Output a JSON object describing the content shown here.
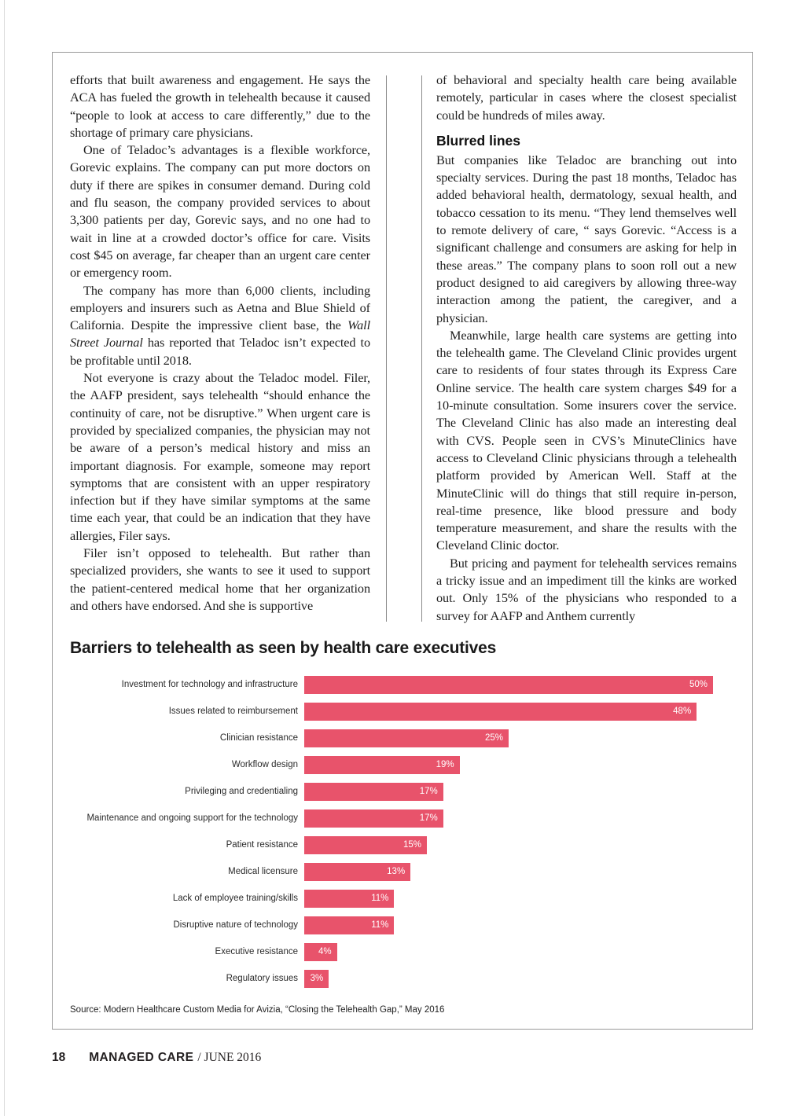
{
  "article": {
    "left_column": {
      "para1": "efforts that built awareness and engagement. He says the ACA has fueled the growth in telehealth because it caused “people to look at access to care differently,” due to the shortage of primary care physicians.",
      "para2": "One of Teladoc’s advantages is a flexible workforce, Gorevic explains. The company can put more doctors on duty if there are spikes in consumer demand. During cold and flu season, the company provided services to about 3,300 patients per day, Gorevic says, and no one had to wait in line at a crowded doctor’s office for care. Visits cost $45 on average, far cheaper than an urgent care center or emergency room.",
      "para3a": "The company has more than 6,000 clients, including employers and insurers such as Aetna and Blue Shield of California. Despite the impressive client base, the ",
      "para3_italic": "Wall Street Journal",
      "para3b": " has reported that Teladoc isn’t expected to be profitable until 2018.",
      "para4": "Not everyone is crazy about the Teladoc model. Filer, the AAFP president, says telehealth “should enhance the continuity of care, not be disruptive.” When urgent care is provided by specialized companies, the physician may not be aware of a person’s medical history and miss an important diagnosis. For example, someone may report symptoms that are consistent with an upper respiratory infection but if they have similar symptoms at the same time each year, that could be an indication that they have allergies, Filer says.",
      "para5": "Filer isn’t opposed to telehealth. But rather than specialized providers, she wants to see it used to support the patient-centered medical home that her organization and others have endorsed. And she is supportive"
    },
    "right_column": {
      "intro": "of behavioral and specialty health care being available remotely, particular in cases where the closest specialist could be hundreds of miles away.",
      "heading": "Blurred lines",
      "para1": "But companies like Teladoc are branching out into specialty services. During the past 18 months, Teladoc has added behavioral health, dermatology, sexual health, and tobacco cessation to its menu. “They lend themselves well to remote delivery of care, “ says Gorevic. “Access is a significant challenge and consumers are asking for help in these areas.” The company plans to soon roll out a new product designed to aid caregivers by allowing three-way interaction among the patient, the caregiver, and a physician.",
      "para2": "Meanwhile, large health care systems are getting into the telehealth game. The Cleveland Clinic provides urgent care to residents of four states through its Express Care Online service. The health care system charges $49 for a 10-minute consultation. Some insurers cover the service. The Cleveland Clinic has also made an interesting deal with CVS. People seen in CVS’s MinuteClinics have access to Cleveland Clinic physicians through a telehealth platform provided by American Well. Staff at the MinuteClinic will do things that still require in-person, real-time presence, like blood pressure and body temperature measurement, and share the results with the Cleveland Clinic doctor.",
      "para3": "But pricing and payment for telehealth services remains a tricky issue and an impediment till the kinks are worked out. Only 15% of the physicians who responded to a survey for AAFP and Anthem currently"
    }
  },
  "chart_data": {
    "type": "bar",
    "orientation": "horizontal",
    "title": "Barriers to telehealth as seen by health care executives",
    "categories": [
      "Investment for technology and infrastructure",
      "Issues related to reimbursement",
      "Clinician resistance",
      "Workflow design",
      "Privileging and credentialing",
      "Maintenance and ongoing support for the technology",
      "Patient resistance",
      "Medical licensure",
      "Lack of employee training/skills",
      "Disruptive nature of technology",
      "Executive resistance",
      "Regulatory issues"
    ],
    "values": [
      50,
      48,
      25,
      19,
      17,
      17,
      15,
      13,
      11,
      11,
      4,
      3
    ],
    "unit": "%",
    "value_labels": [
      "50%",
      "48%",
      "25%",
      "19%",
      "17%",
      "17%",
      "15%",
      "13%",
      "11%",
      "11%",
      "4%",
      "3%"
    ],
    "bar_color": "#e8536b",
    "value_label_position": "inside-end",
    "legend": "none",
    "grid": "off",
    "source": "Source:  Modern Healthcare Custom Media for Avizia, “Closing the Telehealth Gap,” May 2016"
  },
  "footer": {
    "page_number": "18",
    "magazine": "MANAGED CARE",
    "issue": "/ JUNE 2016"
  }
}
